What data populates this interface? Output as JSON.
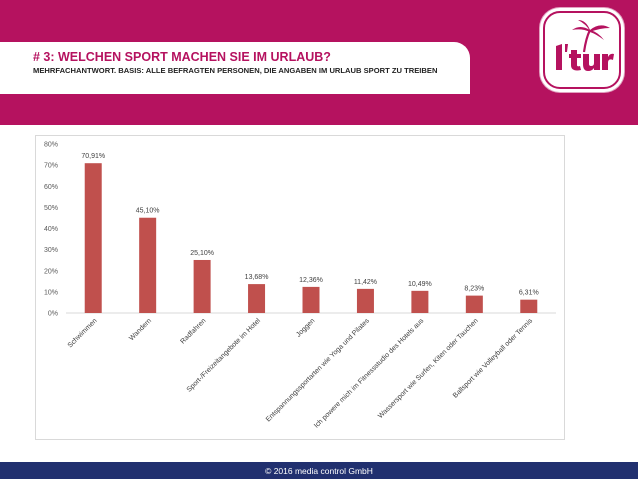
{
  "header": {
    "title": "# 3: WELCHEN SPORT MACHEN SIE IM URLAUB?",
    "subtitle": "MEHRFACHANTWORT. BASIS: ALLE BEFRAGTEN PERSONEN, DIE ANGABEN IM URLAUB SPORT ZU TREIBEN",
    "logo_text": "l'tur",
    "brand_color": "#b5125f"
  },
  "footer": {
    "text": "© 2016 media control GmbH",
    "color": "#21306f"
  },
  "chart_data": {
    "type": "bar",
    "categories": [
      "Schwimmen",
      "Wandern",
      "Radfahren",
      "Sport-/Freizeitangebote im Hotel",
      "Joggen",
      "Entspannungssportarten wie Yoga und Pilates",
      "Ich powere mich im Fitnessstudio des Hotels aus",
      "Wassersport wie Surfen, Kiten oder Tauchen",
      "Ballsport wie Volleyball oder Tennis"
    ],
    "values": [
      70.91,
      45.1,
      25.1,
      13.68,
      12.36,
      11.42,
      10.49,
      8.23,
      6.31
    ],
    "data_labels": [
      "70,91%",
      "45,10%",
      "25,10%",
      "13,68%",
      "12,36%",
      "11,42%",
      "10,49%",
      "8,23%",
      "6,31%"
    ],
    "yticks": [
      "0%",
      "10%",
      "20%",
      "30%",
      "40%",
      "50%",
      "60%",
      "70%",
      "80%"
    ],
    "ylim": [
      0,
      80
    ],
    "bar_color": "#c0504d",
    "grid": false,
    "title": "",
    "xlabel": "",
    "ylabel": ""
  }
}
